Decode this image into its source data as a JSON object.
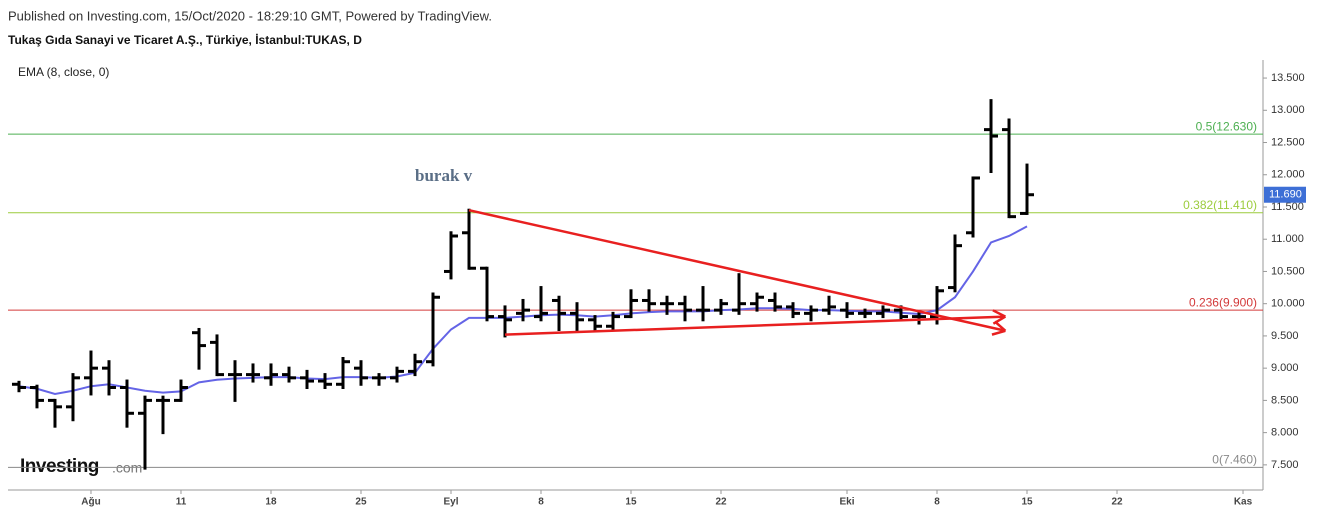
{
  "chart_data": {
    "type": "ohlc",
    "published": "Published on Investing.com, 15/Oct/2020 - 18:29:10 GMT, Powered by TradingView.",
    "title": "Tukaş Gıda Sanayi ve Ticaret A.Ş., Türkiye, İstanbul:TUKAS, D",
    "annotation": "burak v",
    "logo": {
      "brand": "Investing",
      "suffix": ".com"
    },
    "x": [
      -4,
      -3,
      -2,
      -1,
      0,
      1,
      2,
      3,
      4,
      5,
      6,
      7,
      8,
      9,
      10,
      11,
      12,
      13,
      14,
      15,
      16,
      17,
      18,
      19,
      20,
      21,
      22,
      23,
      24,
      25,
      26,
      27,
      28,
      29,
      30,
      31,
      32,
      33,
      34,
      35,
      36,
      37,
      38,
      39,
      40,
      41,
      42,
      43,
      44,
      45,
      46,
      47,
      48,
      49,
      50,
      51,
      52
    ],
    "open": [
      8.75,
      8.7,
      8.5,
      8.4,
      8.85,
      9.0,
      8.7,
      8.3,
      8.5,
      8.5,
      9.55,
      9.4,
      8.9,
      8.9,
      8.85,
      8.9,
      8.85,
      8.8,
      8.75,
      9.0,
      8.85,
      8.85,
      8.95,
      9.1,
      10.5,
      11.1,
      10.55,
      9.8,
      9.85,
      9.8,
      10.05,
      9.85,
      9.75,
      9.65,
      9.8,
      10.05,
      10.0,
      10.0,
      9.9,
      9.9,
      9.9,
      10.0,
      10.05,
      9.95,
      9.85,
      9.9,
      9.9,
      9.85,
      9.85,
      9.9,
      9.8,
      9.8,
      10.25,
      11.1,
      12.7,
      12.7,
      11.4
    ],
    "high": [
      8.78,
      8.72,
      8.5,
      8.9,
      9.25,
      9.1,
      8.8,
      8.55,
      8.55,
      8.8,
      9.6,
      9.5,
      9.1,
      9.05,
      9.05,
      9.0,
      8.95,
      8.9,
      9.15,
      9.1,
      8.9,
      9.0,
      9.2,
      10.15,
      11.1,
      11.45,
      10.55,
      9.95,
      10.05,
      10.25,
      10.1,
      10.0,
      9.8,
      9.85,
      10.2,
      10.2,
      10.1,
      10.1,
      10.25,
      10.05,
      10.45,
      10.15,
      10.15,
      10.0,
      9.95,
      10.1,
      10.0,
      9.9,
      9.95,
      9.95,
      9.85,
      10.25,
      11.05,
      11.95,
      13.15,
      12.85,
      12.15
    ],
    "low": [
      8.65,
      8.4,
      8.1,
      8.2,
      8.6,
      8.6,
      8.1,
      7.45,
      8.0,
      8.5,
      9.0,
      8.9,
      8.5,
      8.8,
      8.75,
      8.8,
      8.7,
      8.7,
      8.7,
      8.75,
      8.75,
      8.8,
      8.9,
      9.05,
      10.4,
      10.55,
      9.75,
      9.5,
      9.75,
      9.75,
      9.6,
      9.6,
      9.6,
      9.6,
      9.8,
      9.9,
      9.85,
      9.75,
      9.75,
      9.85,
      9.85,
      9.9,
      9.9,
      9.8,
      9.75,
      9.85,
      9.8,
      9.8,
      9.8,
      9.75,
      9.7,
      9.7,
      10.2,
      11.05,
      12.05,
      11.35,
      11.4
    ],
    "close": [
      8.7,
      8.5,
      8.4,
      8.85,
      9.0,
      8.7,
      8.3,
      8.5,
      8.5,
      8.7,
      9.35,
      8.9,
      8.9,
      8.9,
      8.9,
      8.85,
      8.8,
      8.75,
      9.1,
      8.85,
      8.85,
      8.95,
      9.1,
      10.1,
      11.05,
      10.55,
      9.8,
      9.75,
      9.9,
      9.85,
      9.85,
      9.75,
      9.65,
      9.8,
      10.05,
      10.0,
      10.0,
      9.9,
      9.9,
      10.0,
      10.0,
      10.1,
      9.95,
      9.85,
      9.9,
      9.95,
      9.85,
      9.85,
      9.9,
      9.8,
      9.8,
      10.2,
      10.9,
      11.95,
      12.6,
      11.35,
      11.69
    ],
    "color": "#000000",
    "ema": {
      "name": "EMA (8, close, 0)",
      "color": "#6464e6",
      "values": [
        8.72,
        8.68,
        8.6,
        8.65,
        8.72,
        8.75,
        8.7,
        8.65,
        8.62,
        8.64,
        8.78,
        8.82,
        8.84,
        8.85,
        8.86,
        8.86,
        8.84,
        8.83,
        8.86,
        8.86,
        8.85,
        8.87,
        8.93,
        9.3,
        9.6,
        9.78,
        9.78,
        9.78,
        9.8,
        9.82,
        9.83,
        9.82,
        9.8,
        9.82,
        9.85,
        9.87,
        9.88,
        9.88,
        9.88,
        9.9,
        9.91,
        9.93,
        9.93,
        9.92,
        9.9,
        9.9,
        9.89,
        9.88,
        9.88,
        9.86,
        9.84,
        9.9,
        10.1,
        10.5,
        10.95,
        11.05,
        11.2
      ]
    },
    "levels": [
      {
        "value": 12.63,
        "label": "0.5(12.630)",
        "color": "#4caf50"
      },
      {
        "value": 11.41,
        "label": "0.382(11.410)",
        "color": "#9ccc3d"
      },
      {
        "value": 9.9,
        "label": "0.236(9.900)",
        "color": "#d33a3a"
      },
      {
        "value": 7.46,
        "label": "0(7.460)",
        "color": "#8a8a8a"
      }
    ],
    "trendlines": [
      {
        "x": [
          21,
          50.8
        ],
        "y": [
          11.45,
          9.58
        ],
        "color": "#e82020"
      },
      {
        "x": [
          23,
          50.8
        ],
        "y": [
          9.52,
          9.8
        ],
        "color": "#e82020"
      }
    ],
    "last_price": {
      "value": 11.69,
      "label": "11.690",
      "color": "#3d6fd6"
    },
    "xlim": [
      -4.61,
      65.11
    ],
    "ylim": [
      7.11,
      13.78
    ],
    "xticks": [
      {
        "value": 0,
        "label": "Ağu"
      },
      {
        "value": 5,
        "label": "11"
      },
      {
        "value": 10,
        "label": "18"
      },
      {
        "value": 15,
        "label": "25"
      },
      {
        "value": 20,
        "label": "Eyl"
      },
      {
        "value": 25,
        "label": "8"
      },
      {
        "value": 30,
        "label": "15"
      },
      {
        "value": 35,
        "label": "22"
      },
      {
        "value": 42,
        "label": "Eki"
      },
      {
        "value": 47,
        "label": "8"
      },
      {
        "value": 52,
        "label": "15"
      },
      {
        "value": 57,
        "label": "22"
      },
      {
        "value": 64,
        "label": "Kas"
      }
    ],
    "yticks": [
      {
        "value": 7.5,
        "label": "7.500"
      },
      {
        "value": 8,
        "label": "8.000"
      },
      {
        "value": 8.5,
        "label": "8.500"
      },
      {
        "value": 9,
        "label": "9.000"
      },
      {
        "value": 9.5,
        "label": "9.500"
      },
      {
        "value": 10,
        "label": "10.000"
      },
      {
        "value": 10.5,
        "label": "10.500"
      },
      {
        "value": 11,
        "label": "11.000"
      },
      {
        "value": 11.5,
        "label": "11.500"
      },
      {
        "value": 12,
        "label": "12.000"
      },
      {
        "value": 12.5,
        "label": "12.500"
      },
      {
        "value": 13,
        "label": "13.000"
      },
      {
        "value": 13.5,
        "label": "13.500"
      }
    ]
  }
}
